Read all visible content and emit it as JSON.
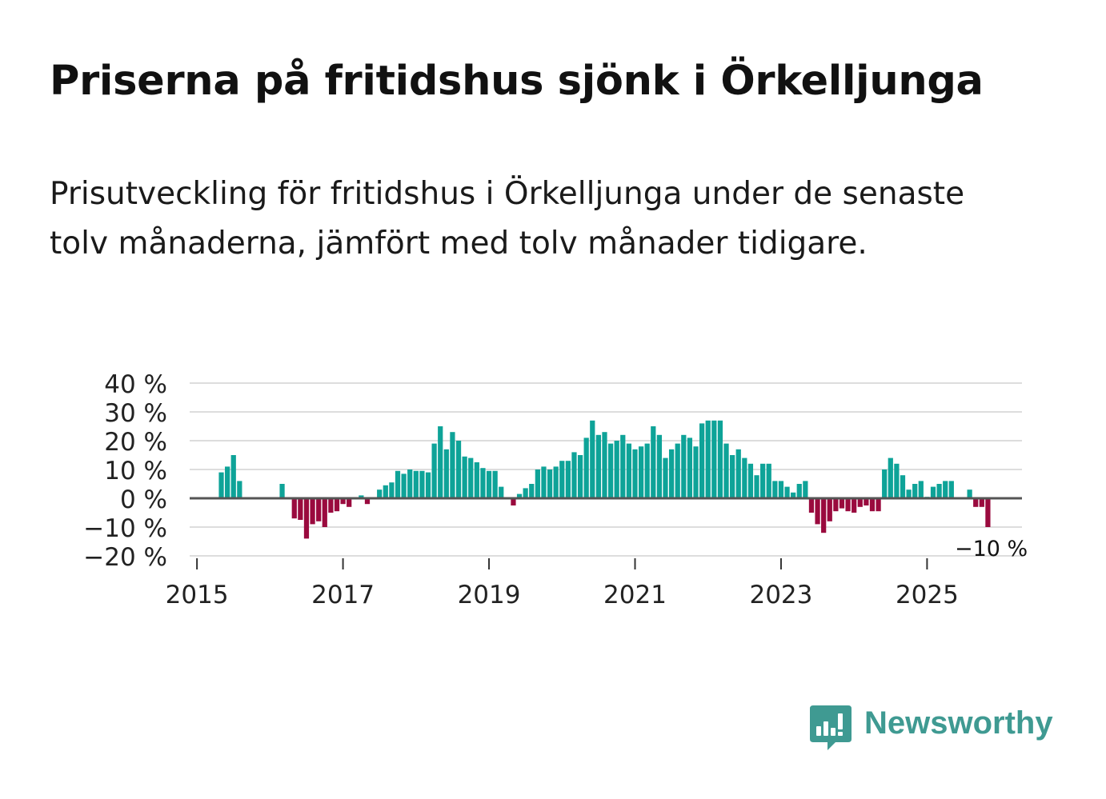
{
  "title": "Priserna på fritidshus sjönk i Örkelljunga",
  "subtitle": "Prisutveckling för fritidshus i Örkelljunga under de senaste tolv månaderna, jämfört med tolv månader tidigare.",
  "brand": {
    "name": "Newsworthy",
    "color": "#3f9a92"
  },
  "colors": {
    "positive": "#0ea398",
    "negative": "#9a0a3e",
    "grid": "#dddddd",
    "zero": "#555555"
  },
  "chart_data": {
    "type": "bar",
    "title": "Priserna på fritidshus sjönk i Örkelljunga",
    "xlabel": "",
    "ylabel": "",
    "ylim": [
      -20,
      40
    ],
    "xlim": [
      2014.9,
      2026.3
    ],
    "yticks": [
      40,
      30,
      20,
      10,
      0,
      -10,
      -20
    ],
    "ytick_labels": [
      "40 %",
      "30 %",
      "20 %",
      "10 %",
      "0 %",
      "−10 %",
      "−20 %"
    ],
    "xticks": [
      2015,
      2017,
      2019,
      2021,
      2023,
      2025
    ],
    "xtick_labels": [
      "2015",
      "2017",
      "2019",
      "2021",
      "2023",
      "2025"
    ],
    "annotation": {
      "text": "−10 %",
      "x": 2025.875,
      "y": -10
    },
    "start": {
      "year": 2015,
      "month": 1
    },
    "values": [
      null,
      null,
      null,
      null,
      9,
      11,
      15,
      6,
      null,
      null,
      null,
      null,
      null,
      null,
      5,
      null,
      -7,
      -7.5,
      -14,
      -9,
      -8,
      -10,
      -5,
      -4.5,
      -2,
      -3,
      null,
      1,
      -2,
      null,
      3,
      4.5,
      5.5,
      9.5,
      8.5,
      10,
      9.5,
      9.5,
      9,
      19,
      25,
      17,
      23,
      20,
      14.5,
      14,
      12.5,
      10.5,
      9.5,
      9.5,
      4,
      null,
      -2.5,
      1.5,
      3.5,
      5,
      10,
      11,
      10,
      11,
      13,
      13,
      16,
      15,
      21,
      27,
      22,
      23,
      19,
      20,
      22,
      19,
      17,
      18,
      19,
      25,
      22,
      14,
      17,
      19,
      22,
      21,
      18,
      26,
      27,
      27,
      27,
      19,
      15,
      17,
      14,
      12,
      8,
      12,
      12,
      6,
      6,
      4,
      2,
      5,
      6,
      -5,
      -9,
      -12,
      -8,
      -4.5,
      -3.5,
      -4.5,
      -5,
      -3,
      -2.5,
      -4.5,
      -4.5,
      10,
      14,
      12,
      8,
      3,
      5,
      6,
      0.5,
      4,
      5,
      6,
      6,
      null,
      null,
      3,
      -3,
      -3,
      -10
    ]
  }
}
